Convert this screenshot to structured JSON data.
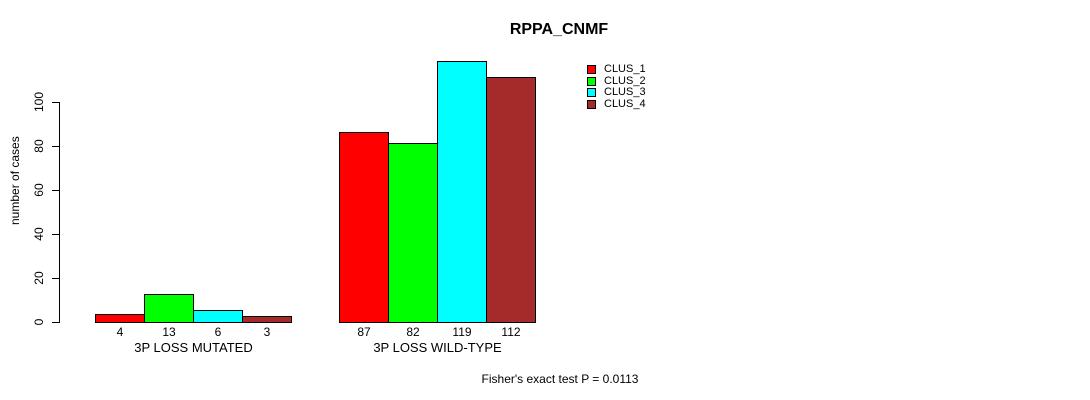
{
  "title": "RPPA_CNMF",
  "y_axis": {
    "label": "number of cases",
    "ticks": [
      0,
      20,
      40,
      60,
      80,
      100
    ]
  },
  "footer_text": "Fisher's exact test P = 0.0113",
  "colors": {
    "background": "#ffffff",
    "axis": "#000000",
    "bar_border": "#000000",
    "clus_1": "#ff0000",
    "clus_2": "#00ff00",
    "clus_3": "#00ffff",
    "clus_4": "#a52a2a"
  },
  "chart_data": {
    "type": "bar",
    "title": "RPPA_CNMF",
    "xlabel": "",
    "ylabel": "number of cases",
    "ylim": [
      0,
      120
    ],
    "yticks": [
      0,
      20,
      40,
      60,
      80,
      100
    ],
    "grid": false,
    "legend_position": "top-right",
    "categories": [
      "3P LOSS MUTATED",
      "3P LOSS WILD-TYPE"
    ],
    "series": [
      {
        "name": "CLUS_1",
        "color": "#ff0000",
        "values": [
          4,
          87
        ]
      },
      {
        "name": "CLUS_2",
        "color": "#00ff00",
        "values": [
          13,
          82
        ]
      },
      {
        "name": "CLUS_3",
        "color": "#00ffff",
        "values": [
          6,
          119
        ]
      },
      {
        "name": "CLUS_4",
        "color": "#a52a2a",
        "values": [
          3,
          112
        ]
      }
    ],
    "bar_value_labels": [
      [
        4,
        13,
        6,
        3
      ],
      [
        87,
        82,
        119,
        112
      ]
    ],
    "annotation": "Fisher's exact test P = 0.0113"
  }
}
